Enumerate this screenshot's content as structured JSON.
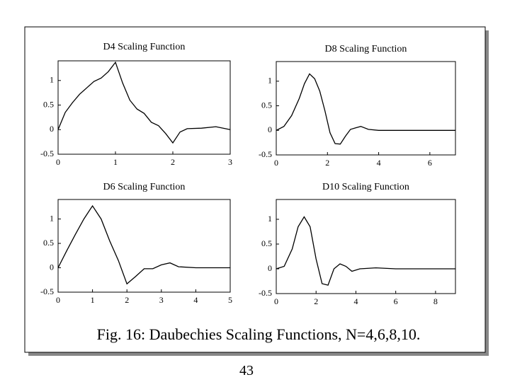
{
  "chart_data": [
    {
      "type": "line",
      "title": "D4 Scaling Function",
      "x": [
        0,
        0.125,
        0.25,
        0.375,
        0.5,
        0.625,
        0.75,
        0.875,
        1,
        1.125,
        1.25,
        1.375,
        1.5,
        1.625,
        1.75,
        1.875,
        2,
        2.125,
        2.25,
        2.5,
        2.75,
        3
      ],
      "values": [
        0,
        0.35,
        0.55,
        0.72,
        0.85,
        0.98,
        1.05,
        1.18,
        1.37,
        0.95,
        0.6,
        0.42,
        0.33,
        0.15,
        0.08,
        -0.08,
        -0.27,
        -0.05,
        0.02,
        0.03,
        0.06,
        0
      ],
      "color": "#000000",
      "xlim": [
        0,
        3
      ],
      "ylim": [
        -0.5,
        1.4
      ],
      "xticks": [
        0,
        1,
        2,
        3
      ],
      "yticks": [
        -0.5,
        0,
        0.5,
        1
      ]
    },
    {
      "type": "line",
      "title": "D8 Scaling Function",
      "x": [
        0,
        0.3,
        0.6,
        0.9,
        1.1,
        1.3,
        1.5,
        1.7,
        1.9,
        2.1,
        2.3,
        2.5,
        2.7,
        2.9,
        3.1,
        3.3,
        3.6,
        4,
        5,
        6,
        7
      ],
      "values": [
        0,
        0.08,
        0.3,
        0.65,
        0.95,
        1.15,
        1.05,
        0.8,
        0.4,
        -0.05,
        -0.27,
        -0.28,
        -0.12,
        0.02,
        0.05,
        0.08,
        0.02,
        0,
        0,
        0,
        0
      ],
      "color": "#000000",
      "xlim": [
        0,
        7
      ],
      "ylim": [
        -0.5,
        1.4
      ],
      "xticks": [
        0,
        2,
        4,
        6
      ],
      "yticks": [
        -0.5,
        0,
        0.5,
        1
      ]
    },
    {
      "type": "line",
      "title": "D6 Scaling Function",
      "x": [
        0,
        0.25,
        0.5,
        0.75,
        1,
        1.25,
        1.5,
        1.75,
        2,
        2.25,
        2.5,
        2.75,
        3,
        3.25,
        3.5,
        4,
        4.5,
        5
      ],
      "values": [
        0,
        0.35,
        0.68,
        1.0,
        1.27,
        1.0,
        0.55,
        0.15,
        -0.33,
        -0.18,
        -0.02,
        -0.02,
        0.06,
        0.1,
        0.02,
        0,
        0,
        0
      ],
      "color": "#000000",
      "xlim": [
        0,
        5
      ],
      "ylim": [
        -0.5,
        1.4
      ],
      "xticks": [
        0,
        1,
        2,
        3,
        4,
        5
      ],
      "yticks": [
        -0.5,
        0,
        0.5,
        1
      ]
    },
    {
      "type": "line",
      "title": "D10 Scaling Function",
      "x": [
        0,
        0.4,
        0.8,
        1.1,
        1.4,
        1.7,
        2,
        2.3,
        2.6,
        2.9,
        3.2,
        3.5,
        3.8,
        4.2,
        5,
        6,
        7,
        8,
        9
      ],
      "values": [
        0,
        0.05,
        0.4,
        0.85,
        1.05,
        0.85,
        0.2,
        -0.3,
        -0.33,
        0.0,
        0.1,
        0.05,
        -0.05,
        0,
        0.02,
        0,
        0,
        0,
        0
      ],
      "color": "#000000",
      "xlim": [
        0,
        9
      ],
      "ylim": [
        -0.5,
        1.4
      ],
      "xticks": [
        0,
        2,
        4,
        6,
        8
      ],
      "yticks": [
        -0.5,
        0,
        0.5,
        1
      ]
    }
  ],
  "caption": "Fig. 16: Daubechies Scaling Functions, N=4,6,8,10.",
  "page_number": "43"
}
